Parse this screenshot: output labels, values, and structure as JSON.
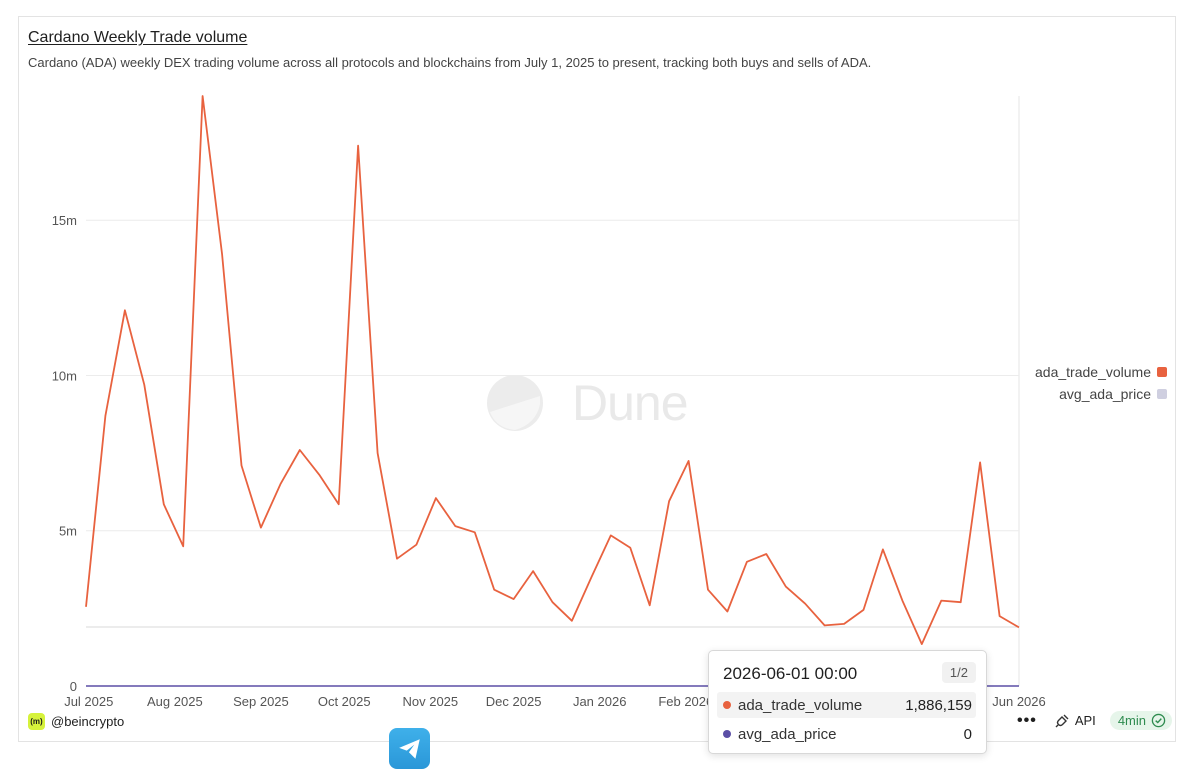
{
  "header": {
    "title": "Cardano Weekly Trade volume",
    "subtitle": "Cardano (ADA) weekly DEX trading volume across all protocols and blockchains from July 1, 2025 to present, tracking both buys and sells of ADA."
  },
  "watermark": "Dune",
  "chart_data": {
    "type": "line",
    "title": "Cardano Weekly Trade volume",
    "x_ticks": [
      "Jul 2025",
      "Aug 2025",
      "Sep 2025",
      "Oct 2025",
      "Nov 2025",
      "Dec 2025",
      "Jan 2026",
      "Feb 2026",
      "Jun 2026"
    ],
    "y_ticks": [
      "0",
      "5m",
      "10m",
      "15m"
    ],
    "ylim": [
      0,
      19000000
    ],
    "grid": true,
    "legend_position": "right",
    "series": [
      {
        "name": "ada_trade_volume",
        "color": "#e8623f",
        "x": [
          "2025-06-30",
          "2025-07-07",
          "2025-07-14",
          "2025-07-21",
          "2025-07-28",
          "2025-08-04",
          "2025-08-11",
          "2025-08-18",
          "2025-08-25",
          "2025-09-01",
          "2025-09-08",
          "2025-09-15",
          "2025-09-22",
          "2025-09-29",
          "2025-10-06",
          "2025-10-13",
          "2025-10-20",
          "2025-10-27",
          "2025-11-03",
          "2025-11-10",
          "2025-11-17",
          "2025-11-24",
          "2025-12-01",
          "2025-12-08",
          "2025-12-15",
          "2025-12-22",
          "2025-12-29",
          "2026-01-05",
          "2026-01-12",
          "2026-01-19",
          "2026-01-26",
          "2026-02-02",
          "2026-02-09",
          "2026-02-16",
          "2026-02-23",
          "2026-03-02",
          "2026-03-09",
          "2026-03-16",
          "2026-03-23",
          "2026-03-30",
          "2026-04-06",
          "2026-04-13",
          "2026-04-20",
          "2026-04-27",
          "2026-05-04",
          "2026-05-11",
          "2026-05-18",
          "2026-05-25",
          "2026-06-01"
        ],
        "values": [
          2550000,
          8700000,
          12100000,
          9700000,
          5850000,
          4500000,
          19000000,
          13900000,
          7100000,
          5100000,
          6500000,
          7600000,
          6800000,
          5850000,
          17400000,
          7500000,
          4100000,
          4550000,
          6050000,
          5150000,
          4950000,
          3100000,
          2800000,
          3700000,
          2700000,
          2100000,
          3500000,
          4850000,
          4450000,
          2600000,
          5950000,
          7250000,
          3100000,
          2400000,
          4000000,
          4250000,
          3200000,
          2650000,
          1950000,
          2000000,
          2450000,
          4400000,
          2750000,
          1350000,
          2750000,
          2700000,
          7200000,
          2250000,
          1886159
        ]
      },
      {
        "name": "avg_ada_price",
        "color": "#cfcfe0",
        "values": [
          0
        ]
      }
    ]
  },
  "tooltip": {
    "date": "2026-06-01 00:00",
    "page": "1/2",
    "rows": [
      {
        "name": "ada_trade_volume",
        "value": "1,886,159",
        "color": "#e8623f"
      },
      {
        "name": "avg_ada_price",
        "value": "0",
        "color": "#5b4fa6"
      }
    ]
  },
  "footer": {
    "author": "@beincrypto",
    "logo_text": "(m)",
    "more_icon": "more-icon",
    "api_label": "API",
    "refresh": "4min"
  }
}
